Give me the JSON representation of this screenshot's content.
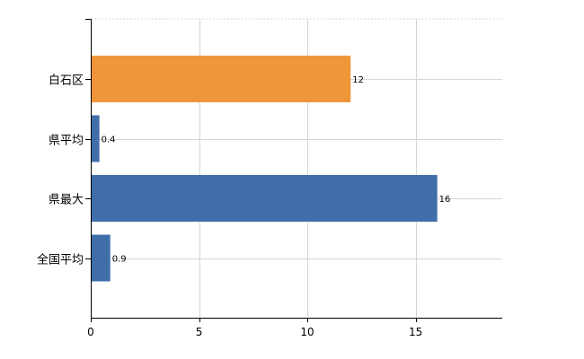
{
  "chart_data": {
    "type": "bar",
    "orientation": "horizontal",
    "categories": [
      "白石区",
      "県平均",
      "県最大",
      "全国平均"
    ],
    "values": [
      12,
      0.4,
      16,
      0.9
    ],
    "value_labels": [
      "12",
      "0.4",
      "16",
      "0.9"
    ],
    "colors": [
      "#f0963a",
      "#3f6eaa",
      "#3f6eaa",
      "#3f6eaa"
    ],
    "xlim": [
      0,
      19
    ],
    "xticks": [
      0,
      5,
      10,
      15
    ],
    "grid": true,
    "title": "",
    "xlabel": "",
    "ylabel": ""
  }
}
